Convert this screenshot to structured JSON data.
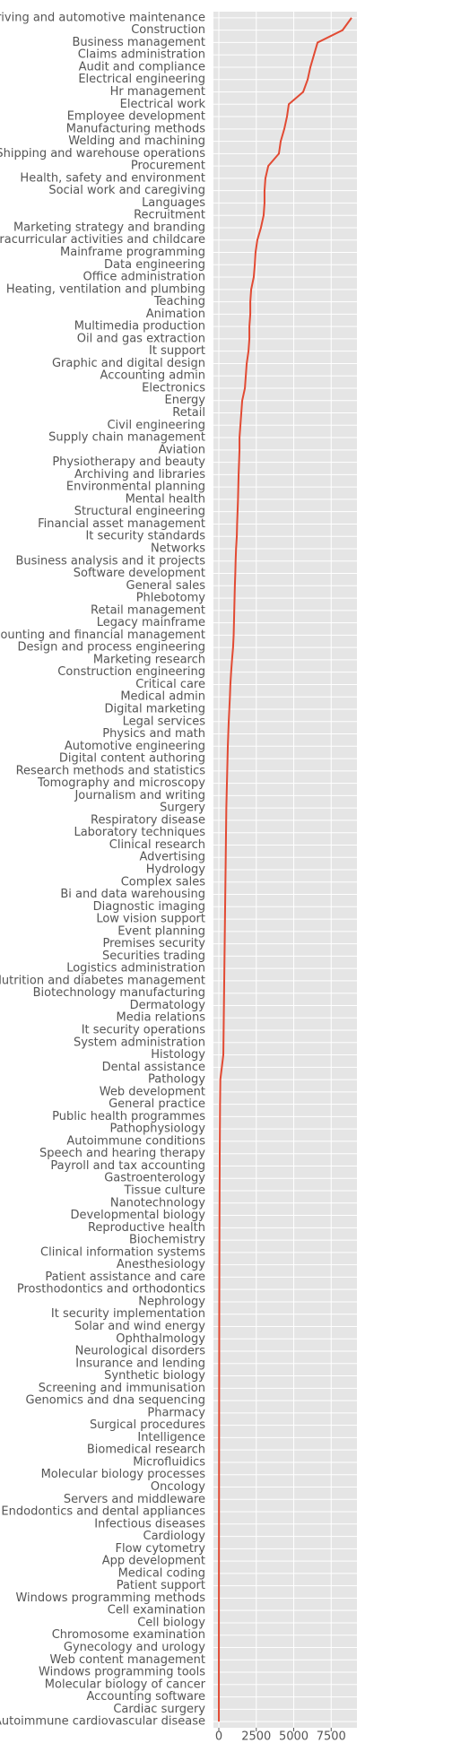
{
  "chart_data": {
    "type": "line",
    "orientation": "horizontal",
    "color": "#e24a33",
    "grid": true,
    "categories": [
      "Driving and automotive maintenance",
      "Construction",
      "Business management",
      "Claims administration",
      "Audit and compliance",
      "Electrical engineering",
      "Hr management",
      "Electrical work",
      "Employee development",
      "Manufacturing methods",
      "Welding and machining",
      "Shipping and warehouse operations",
      "Procurement",
      "Health, safety and environment",
      "Social work and caregiving",
      "Languages",
      "Recruitment",
      "Marketing strategy and branding",
      "Extracurricular activities and childcare",
      "Mainframe programming",
      "Data engineering",
      "Office administration",
      "Heating, ventilation and plumbing",
      "Teaching",
      "Animation",
      "Multimedia production",
      "Oil and gas extraction",
      "It support",
      "Graphic and digital design",
      "Accounting admin",
      "Electronics",
      "Energy",
      "Retail",
      "Civil engineering",
      "Supply chain management",
      "Aviation",
      "Physiotherapy and beauty",
      "Archiving and libraries",
      "Environmental planning",
      "Mental health",
      "Structural engineering",
      "Financial asset management",
      "It security standards",
      "Networks",
      "Business analysis and it projects",
      "Software development",
      "General sales",
      "Phlebotomy",
      "Retail management",
      "Legacy mainframe",
      "Accounting and financial management",
      "Design and process engineering",
      "Marketing research",
      "Construction engineering",
      "Critical care",
      "Medical admin",
      "Digital marketing",
      "Legal services",
      "Physics and math",
      "Automotive engineering",
      "Digital content authoring",
      "Research methods and statistics",
      "Tomography and microscopy",
      "Journalism and writing",
      "Surgery",
      "Respiratory disease",
      "Laboratory techniques",
      "Clinical research",
      "Advertising",
      "Hydrology",
      "Complex sales",
      "Bi and data warehousing",
      "Diagnostic imaging",
      "Low vision support",
      "Event planning",
      "Premises security",
      "Securities trading",
      "Logistics administration",
      "Nutrition and diabetes management",
      "Biotechnology manufacturing",
      "Dermatology",
      "Media relations",
      "It security operations",
      "System administration",
      "Histology",
      "Dental assistance",
      "Pathology",
      "Web development",
      "General practice",
      "Public health programmes",
      "Pathophysiology",
      "Autoimmune conditions",
      "Speech and hearing therapy",
      "Payroll and tax accounting",
      "Gastroenterology",
      "Tissue culture",
      "Nanotechnology",
      "Developmental biology",
      "Reproductive health",
      "Biochemistry",
      "Clinical information systems",
      "Anesthesiology",
      "Patient assistance and care",
      "Prosthodontics and orthodontics",
      "Nephrology",
      "It security implementation",
      "Solar and wind energy",
      "Ophthalmology",
      "Neurological disorders",
      "Insurance and lending",
      "Synthetic biology",
      "Screening and immunisation",
      "Genomics and dna sequencing",
      "Pharmacy",
      "Surgical procedures",
      "Intelligence",
      "Biomedical research",
      "Microfluidics",
      "Molecular biology processes",
      "Oncology",
      "Servers and middleware",
      "Endodontics and dental appliances",
      "Infectious diseases",
      "Cardiology",
      "Flow cytometry",
      "App development",
      "Medical coding",
      "Patient support",
      "Windows programming methods",
      "Cell examination",
      "Cell biology",
      "Chromosome examination",
      "Gynecology and urology",
      "Web content management",
      "Windows programming tools",
      "Molecular biology of cancer",
      "Accounting software",
      "Cardiac surgery",
      "Autoimmune cardiovascular disease"
    ],
    "values": [
      8860,
      8260,
      6590,
      6350,
      6110,
      5930,
      5630,
      4670,
      4550,
      4370,
      4130,
      4010,
      3300,
      3110,
      3050,
      3050,
      2990,
      2810,
      2570,
      2450,
      2400,
      2330,
      2160,
      2100,
      2100,
      2040,
      2040,
      1980,
      1860,
      1800,
      1740,
      1560,
      1500,
      1440,
      1380,
      1380,
      1350,
      1320,
      1300,
      1280,
      1250,
      1220,
      1200,
      1150,
      1120,
      1100,
      1070,
      1050,
      1030,
      1010,
      990,
      950,
      880,
      820,
      770,
      740,
      700,
      660,
      630,
      600,
      580,
      560,
      540,
      520,
      500,
      490,
      480,
      470,
      460,
      450,
      440,
      430,
      420,
      410,
      400,
      390,
      380,
      370,
      360,
      350,
      340,
      330,
      320,
      310,
      300,
      200,
      100,
      90,
      80,
      75,
      70,
      65,
      60,
      57,
      54,
      51,
      48,
      45,
      42,
      40,
      38,
      36,
      34,
      32,
      30,
      28,
      27,
      26,
      25,
      24,
      23,
      22,
      21,
      20,
      19,
      18,
      17,
      16,
      15,
      14,
      13,
      12,
      11,
      10,
      9,
      8,
      7,
      6,
      5,
      5,
      4,
      4,
      3,
      3,
      2,
      2,
      1,
      1,
      1
    ],
    "xlim": [
      -360,
      9220
    ],
    "xticks": [
      0,
      2500,
      5000,
      7500
    ]
  }
}
